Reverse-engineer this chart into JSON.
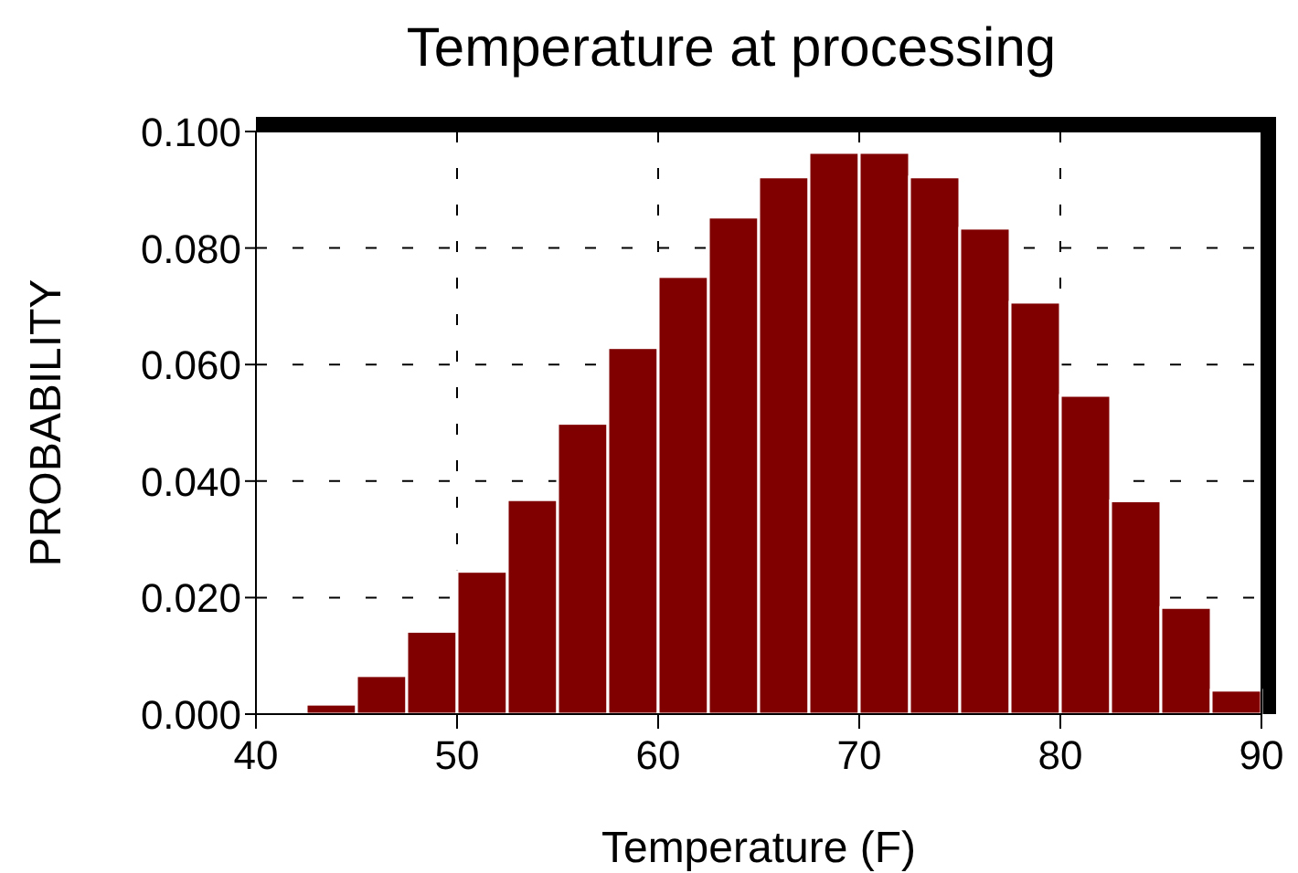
{
  "chart_data": {
    "type": "histogram",
    "title": "Temperature at processing",
    "xlabel": "Temperature (F)",
    "ylabel": "PROBABILITY",
    "bins": [
      40,
      42.5,
      45,
      47.5,
      50,
      52.5,
      55,
      57.5,
      60,
      62.5,
      65,
      67.5,
      70,
      72.5,
      75,
      77.5,
      80,
      82.5,
      85,
      87.5,
      90
    ],
    "values": [
      0.0003,
      0.0017,
      0.0066,
      0.0142,
      0.0245,
      0.0368,
      0.0499,
      0.0629,
      0.0751,
      0.0853,
      0.0922,
      0.0964,
      0.0964,
      0.0922,
      0.0834,
      0.0707,
      0.0547,
      0.0366,
      0.0183,
      0.0041
    ],
    "color": "#800000",
    "xlim": [
      40,
      90
    ],
    "xticks": [
      40,
      50,
      60,
      70,
      80,
      90
    ],
    "ylim": [
      0,
      0.1
    ],
    "yticks": [
      {
        "value": 0,
        "label": "0.000"
      },
      {
        "value": 0.02,
        "label": "0.020"
      },
      {
        "value": 0.04,
        "label": "0.040"
      },
      {
        "value": 0.06,
        "label": "0.060"
      },
      {
        "value": 0.08,
        "label": "0.080"
      },
      {
        "value": 0.1,
        "label": "0.100"
      }
    ],
    "grid": true
  }
}
